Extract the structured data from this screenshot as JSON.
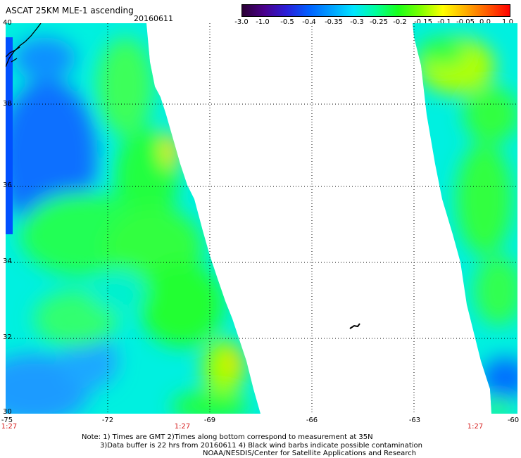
{
  "header": {
    "title": "ASCAT 25KM MLE-1 ascending",
    "date": "20160611"
  },
  "colorbar": {
    "ticks": [
      "-3.0",
      "-1.0",
      "-0.5",
      "-0.4",
      "-0.35",
      "-0.3",
      "-0.25",
      "-0.2",
      "-0.15",
      "-0.1",
      "-0.05",
      "0.0",
      "1.0"
    ],
    "colors": [
      "#2a0033",
      "#4a008c",
      "#2a1fd9",
      "#0060ff",
      "#00a0ff",
      "#00e5ff",
      "#00ff9a",
      "#19ff19",
      "#7fff00",
      "#ffff00",
      "#ffb000",
      "#ff5a00",
      "#ff0000"
    ]
  },
  "map": {
    "lat_labels": [
      "40",
      "38",
      "36",
      "34",
      "32",
      "30"
    ],
    "lon_labels": [
      "-75",
      "-72",
      "-69",
      "-66",
      "-63",
      "-60"
    ],
    "time_labels": [
      "1:27",
      "1:27",
      "1:27"
    ],
    "lat_range": [
      30,
      40
    ],
    "lon_range": [
      -75,
      -60
    ]
  },
  "notes": {
    "line1": "Note: 1) Times are GMT 2)Times along bottom correspond to measurement at 35N",
    "line2": "3)Data buffer is 22 hrs from 20160611 4) Black wind barbs indicate possible contamination",
    "line3": "NOAA/NESDIS/Center for Satellite Applications and Research"
  }
}
